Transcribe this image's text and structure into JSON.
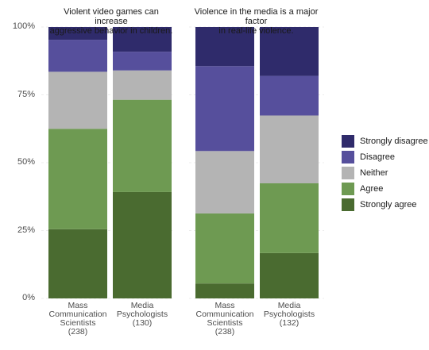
{
  "chart_data": {
    "type": "bar",
    "stacked": true,
    "facets": [
      {
        "title": "Violent video games can increase\naggressive behavior in children.",
        "categories": [
          "Mass\nCommunication\nScientists\n(238)",
          "Media\nPsychologists\n(130)"
        ]
      },
      {
        "title": "Violence in the media is a major factor\nin real-life violence.",
        "categories": [
          "Mass\nCommunication\nScientists\n(238)",
          "Media\nPsychologists\n(132)"
        ]
      }
    ],
    "series": [
      {
        "name": "Strongly agree",
        "color": "#4a6b30",
        "values": [
          [
            25.5,
            39.2
          ],
          [
            5.5,
            16.7
          ]
        ]
      },
      {
        "name": "Agree",
        "color": "#6e9a52",
        "values": [
          [
            37.0,
            34.0
          ],
          [
            25.8,
            25.7
          ]
        ]
      },
      {
        "name": "Neither",
        "color": "#b4b4b4",
        "values": [
          [
            21.0,
            10.8
          ],
          [
            23.0,
            25.0
          ]
        ]
      },
      {
        "name": "Disagree",
        "color": "#564f9c",
        "values": [
          [
            11.8,
            6.9
          ],
          [
            31.3,
            14.6
          ]
        ]
      },
      {
        "name": "Strongly disagree",
        "color": "#2f2b6b",
        "values": [
          [
            4.7,
            9.1
          ],
          [
            14.4,
            18.0
          ]
        ]
      }
    ],
    "ylim": [
      0,
      100
    ],
    "yticks": [
      "0%",
      "25%",
      "50%",
      "75%",
      "100%"
    ],
    "legend_position": "right"
  }
}
